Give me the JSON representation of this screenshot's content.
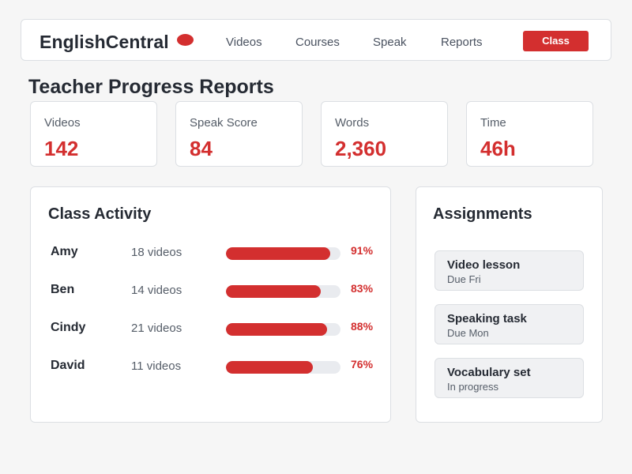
{
  "header": {
    "brand": "EnglishCentral",
    "nav": [
      "Videos",
      "Courses",
      "Speak",
      "Reports"
    ],
    "class_button": "Class"
  },
  "page_title": "Teacher Progress Reports",
  "stats": [
    {
      "label": "Videos",
      "value": "142"
    },
    {
      "label": "Speak Score",
      "value": "84"
    },
    {
      "label": "Words",
      "value": "2,360"
    },
    {
      "label": "Time",
      "value": "46h"
    }
  ],
  "activity": {
    "title": "Class Activity",
    "rows": [
      {
        "name": "Amy",
        "videos": "18 videos",
        "percent": 91,
        "percent_label": "91%"
      },
      {
        "name": "Ben",
        "videos": "14 videos",
        "percent": 83,
        "percent_label": "83%"
      },
      {
        "name": "Cindy",
        "videos": "21 videos",
        "percent": 88,
        "percent_label": "88%"
      },
      {
        "name": "David",
        "videos": "11 videos",
        "percent": 76,
        "percent_label": "76%"
      }
    ]
  },
  "assignments": {
    "title": "Assignments",
    "items": [
      {
        "title": "Video lesson",
        "status": "Due Fri"
      },
      {
        "title": "Speaking task",
        "status": "Due Mon"
      },
      {
        "title": "Vocabulary set",
        "status": "In progress"
      }
    ]
  },
  "colors": {
    "accent": "#d32f2f",
    "background": "#f6f6f6",
    "card": "#ffffff",
    "track": "#e9ebef",
    "text": "#252a33"
  }
}
